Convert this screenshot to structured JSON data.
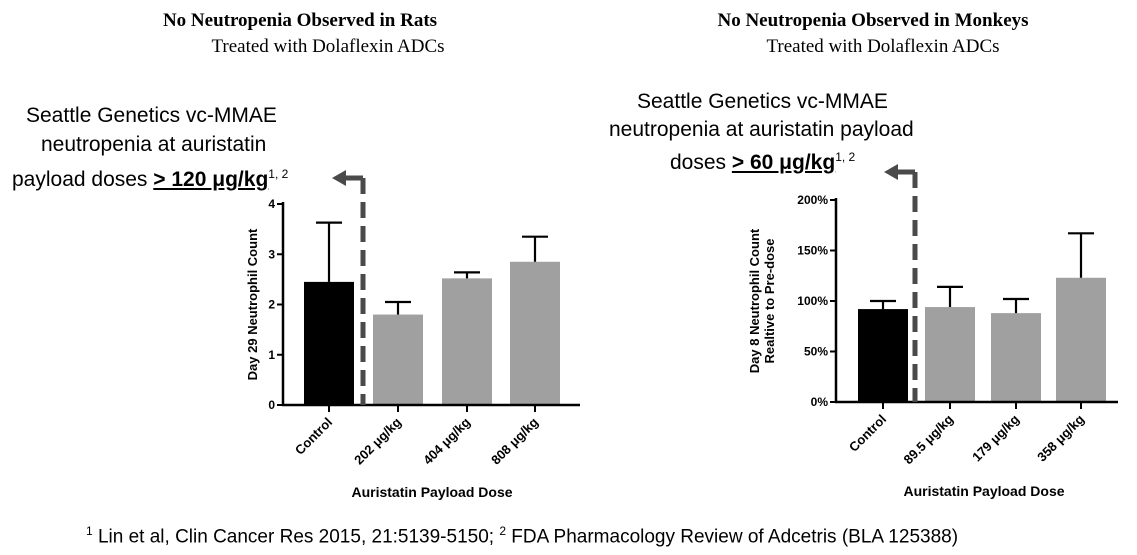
{
  "left": {
    "title": "No Neutropenia Observed in Rats",
    "subtitle": "Treated with Dolaflexin ADCs",
    "note": {
      "line1": "Seattle Genetics vc-MMAE",
      "line2": "neutropenia at auristatin",
      "line3_prefix": "payload doses ",
      "dose": "> 120 μg/kg",
      "refs": "1, 2"
    }
  },
  "right": {
    "title": "No Neutropenia Observed in Monkeys",
    "subtitle": "Treated with Dolaflexin ADCs",
    "note": {
      "line1": "Seattle Genetics vc-MMAE",
      "line2": "neutropenia at auristatin payload",
      "line3_prefix": "doses ",
      "dose": "> 60 μg/kg",
      "refs": "1, 2"
    }
  },
  "footnote": {
    "ref1_num": "1",
    "ref1_text": " Lin et al, Clin Cancer Res 2015, 21:5139-5150; ",
    "ref2_num": "2",
    "ref2_text": " FDA Pharmacology Review of Adcetris (BLA 125388)"
  },
  "colors": {
    "control": "#000000",
    "treated": "#a0a0a0",
    "arrow": "#4a4a4a"
  },
  "chart_data": [
    {
      "type": "bar",
      "title": "No Neutropenia Observed in Rats",
      "categories": [
        "Control",
        "202 μg/kg",
        "404 μg/kg",
        "808 μg/kg"
      ],
      "values": [
        2.45,
        1.8,
        2.52,
        2.85
      ],
      "errors": [
        1.18,
        0.25,
        0.12,
        0.5
      ],
      "ylabel": "Day 29 Neutrophil Count",
      "xlabel": "Auristatin Payload Dose",
      "ylim": [
        0,
        4
      ],
      "yticks": [
        0,
        1,
        2,
        3,
        4
      ],
      "ytick_labels": [
        "0",
        "1",
        "2",
        "3",
        "4"
      ]
    },
    {
      "type": "bar",
      "title": "No Neutropenia Observed in Monkeys",
      "categories": [
        "Control",
        "89.5 μg/kg",
        "179 μg/kg",
        "358 μg/kg"
      ],
      "values": [
        92,
        94,
        88,
        123
      ],
      "errors": [
        8,
        20,
        14,
        44
      ],
      "ylabel": "Day 8 Neutrophil Count",
      "ylabel2": "Realtive to Pre-dose",
      "xlabel": "Auristatin Payload Dose",
      "ylim": [
        0,
        200
      ],
      "yticks": [
        0,
        50,
        100,
        150,
        200
      ],
      "ytick_labels": [
        "0%",
        "50%",
        "100%",
        "150%",
        "200%"
      ]
    }
  ]
}
